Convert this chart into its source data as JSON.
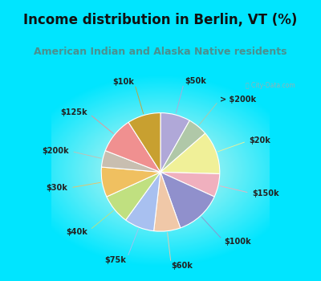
{
  "title": "Income distribution in Berlin, VT (%)",
  "subtitle": "American Indian and Alaska Native residents",
  "title_color": "#111111",
  "subtitle_color": "#4a9090",
  "top_bg": "#00e5ff",
  "slices": [
    {
      "label": "$50k",
      "value": 9,
      "color": "#b0a8d8"
    },
    {
      "label": "> $200k",
      "value": 6,
      "color": "#b0c8a8"
    },
    {
      "label": "$20k",
      "value": 13,
      "color": "#f0f098"
    },
    {
      "label": "$150k",
      "value": 7,
      "color": "#f0b0be"
    },
    {
      "label": "$100k",
      "value": 14,
      "color": "#9090cc"
    },
    {
      "label": "$60k",
      "value": 8,
      "color": "#f0c8a8"
    },
    {
      "label": "$75k",
      "value": 9,
      "color": "#a8c0f0"
    },
    {
      "label": "$40k",
      "value": 9,
      "color": "#c0e080"
    },
    {
      "label": "$30k",
      "value": 9,
      "color": "#f0c060"
    },
    {
      "label": "$200k",
      "value": 5,
      "color": "#c8beb0"
    },
    {
      "label": "$125k",
      "value": 11,
      "color": "#f09090"
    },
    {
      "label": "$10k",
      "value": 10,
      "color": "#c8a030"
    }
  ],
  "watermark": "ⓘ City-Data.com",
  "label_fontsize": 7.0,
  "title_fontsize": 12.0,
  "subtitle_fontsize": 9.0
}
